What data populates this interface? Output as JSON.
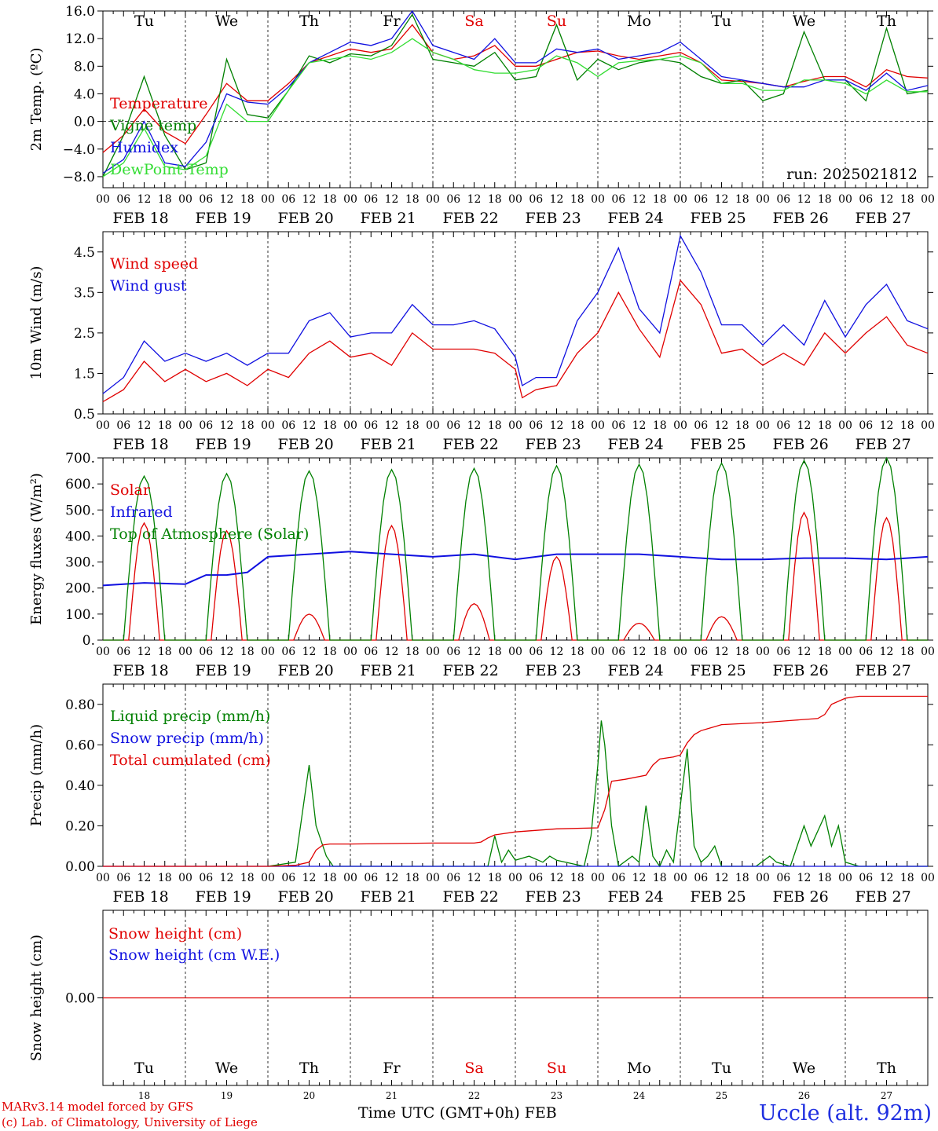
{
  "chart_data": [
    {
      "type": "line",
      "ylabel": "2m Temp. (ºC)",
      "ylim": [
        -9.6,
        16.0
      ],
      "yticks": [
        -8.0,
        -4.0,
        0.0,
        4.0,
        8.0,
        12.0,
        16.0
      ],
      "ytick_labels": [
        "−8.0",
        "−4.0",
        "0.0",
        "4.0",
        "8.0",
        "12.0",
        "16.0"
      ],
      "xlim": [
        0,
        240
      ],
      "annotation": "run: 2025021812",
      "series": [
        {
          "name": "Temperature",
          "color": "#e00000",
          "x": [
            0,
            6,
            12,
            18,
            24,
            30,
            36,
            42,
            48,
            54,
            60,
            66,
            72,
            78,
            84,
            90,
            96,
            102,
            108,
            114,
            120,
            126,
            132,
            138,
            144,
            150,
            156,
            162,
            168,
            174,
            180,
            186,
            192,
            198,
            204,
            210,
            216,
            222,
            228,
            234,
            240
          ],
          "values": [
            -4.5,
            -2,
            1.8,
            -1.5,
            -3.2,
            1,
            5.5,
            3,
            3,
            5.5,
            8.5,
            9.5,
            10.5,
            10,
            10.5,
            14,
            10,
            9,
            9.5,
            11,
            8,
            8,
            9,
            10,
            10.2,
            9.5,
            9,
            9.5,
            10,
            8.5,
            6,
            5.8,
            5.5,
            5,
            5.8,
            6.5,
            6.5,
            5,
            7.5,
            6.5,
            6.3
          ]
        },
        {
          "name": "Vigne temp",
          "color": "#008000",
          "x": [
            0,
            6,
            12,
            18,
            24,
            30,
            36,
            42,
            48,
            54,
            60,
            66,
            72,
            78,
            84,
            90,
            96,
            102,
            108,
            114,
            120,
            126,
            132,
            138,
            144,
            150,
            156,
            162,
            168,
            174,
            180,
            186,
            192,
            198,
            204,
            210,
            216,
            222,
            228,
            234,
            240
          ],
          "values": [
            -8,
            -2,
            6.5,
            -2,
            -7,
            -6,
            9,
            1,
            0.5,
            4.5,
            9.5,
            8.5,
            9.8,
            9.5,
            11,
            15.5,
            9,
            8.5,
            8,
            10,
            6,
            6.5,
            14,
            6,
            9,
            7.5,
            8.5,
            9,
            8.5,
            6.5,
            5.5,
            6,
            3,
            4,
            13,
            6,
            6,
            3,
            13.5,
            4,
            4.5
          ]
        },
        {
          "name": "Humidex",
          "color": "#1010e0",
          "x": [
            0,
            6,
            12,
            18,
            24,
            30,
            36,
            42,
            48,
            54,
            60,
            66,
            72,
            78,
            84,
            90,
            96,
            102,
            108,
            114,
            120,
            126,
            132,
            138,
            144,
            150,
            156,
            162,
            168,
            174,
            180,
            186,
            192,
            198,
            204,
            210,
            216,
            222,
            228,
            234,
            240
          ],
          "values": [
            -7.5,
            -5.5,
            0,
            -6,
            -6.5,
            -3,
            4,
            2.8,
            2.5,
            5,
            8.5,
            10,
            11.5,
            11,
            12,
            16,
            11,
            10,
            9,
            12,
            8.5,
            8.5,
            10.5,
            10,
            10.5,
            9,
            9.5,
            10,
            11.5,
            9,
            6.5,
            6,
            5.5,
            5,
            5,
            6,
            6,
            4.5,
            7,
            4.5,
            5.2
          ]
        },
        {
          "name": "DewPoint Temp",
          "color": "#33dd33",
          "x": [
            0,
            6,
            12,
            18,
            24,
            30,
            36,
            42,
            48,
            54,
            60,
            66,
            72,
            78,
            84,
            90,
            96,
            102,
            108,
            114,
            120,
            126,
            132,
            138,
            144,
            150,
            156,
            162,
            168,
            174,
            180,
            186,
            192,
            198,
            204,
            210,
            216,
            222,
            228,
            234,
            240
          ],
          "values": [
            -8,
            -6,
            -1,
            -6.5,
            -7,
            -5,
            2.5,
            0,
            0,
            4.5,
            8.5,
            9,
            9.5,
            9,
            10,
            12,
            10,
            9,
            7.5,
            7,
            7,
            7.5,
            9.5,
            8.5,
            6.5,
            8.5,
            8.8,
            9,
            9.5,
            8.5,
            5.5,
            5.5,
            4.5,
            4.5,
            6,
            6,
            5.5,
            4,
            6,
            4.3,
            4.3
          ]
        }
      ]
    },
    {
      "type": "line",
      "ylabel": "10m Wind (m/s)",
      "ylim": [
        0.5,
        5.0
      ],
      "yticks": [
        0.5,
        1.5,
        2.5,
        3.5,
        4.5
      ],
      "ytick_labels": [
        "0.5",
        "1.5",
        "2.5",
        "3.5",
        "4.5"
      ],
      "xlim": [
        0,
        240
      ],
      "series": [
        {
          "name": "Wind speed",
          "color": "#e00000",
          "x": [
            0,
            6,
            12,
            18,
            24,
            30,
            36,
            42,
            48,
            54,
            60,
            66,
            72,
            78,
            84,
            90,
            96,
            102,
            108,
            114,
            120,
            122,
            126,
            132,
            138,
            144,
            150,
            156,
            162,
            168,
            174,
            180,
            186,
            192,
            198,
            204,
            210,
            216,
            222,
            228,
            234,
            240
          ],
          "values": [
            0.8,
            1.1,
            1.8,
            1.3,
            1.6,
            1.3,
            1.5,
            1.2,
            1.6,
            1.4,
            2.0,
            2.3,
            1.9,
            2.0,
            1.7,
            2.5,
            2.1,
            2.1,
            2.1,
            2.0,
            1.6,
            0.9,
            1.1,
            1.2,
            2.0,
            2.5,
            3.5,
            2.6,
            1.9,
            3.8,
            3.2,
            2.0,
            2.1,
            1.7,
            2.0,
            1.7,
            2.5,
            2.0,
            2.5,
            2.9,
            2.2,
            2.0
          ]
        },
        {
          "name": "Wind gust",
          "color": "#1010e0",
          "x": [
            0,
            6,
            12,
            18,
            24,
            30,
            36,
            42,
            48,
            54,
            60,
            66,
            72,
            78,
            84,
            90,
            96,
            102,
            108,
            114,
            120,
            122,
            126,
            132,
            138,
            144,
            150,
            156,
            162,
            168,
            174,
            180,
            186,
            192,
            198,
            204,
            210,
            216,
            222,
            228,
            234,
            240
          ],
          "values": [
            1.0,
            1.4,
            2.3,
            1.8,
            2.0,
            1.8,
            2.0,
            1.7,
            2.0,
            2.0,
            2.8,
            3.0,
            2.4,
            2.5,
            2.5,
            3.2,
            2.7,
            2.7,
            2.8,
            2.6,
            1.9,
            1.2,
            1.4,
            1.4,
            2.8,
            3.5,
            4.6,
            3.1,
            2.5,
            4.9,
            4.0,
            2.7,
            2.7,
            2.2,
            2.7,
            2.2,
            3.3,
            2.4,
            3.2,
            3.7,
            2.8,
            2.6
          ]
        }
      ]
    },
    {
      "type": "line",
      "ylabel": "Energy fluxes (W/m²)",
      "ylim": [
        0,
        700
      ],
      "yticks": [
        0,
        100,
        200,
        300,
        400,
        500,
        600,
        700
      ],
      "ytick_labels": [
        "0.",
        "100.",
        "200.",
        "300.",
        "400.",
        "500.",
        "600.",
        "700."
      ],
      "xlim": [
        0,
        240
      ],
      "series": [
        {
          "name": "Solar",
          "color": "#e00000",
          "peaks": [
            450,
            420,
            100,
            440,
            140,
            320,
            65,
            90,
            490,
            470
          ]
        },
        {
          "name": "Infrared",
          "color": "#1010e0",
          "x": [
            0,
            12,
            24,
            30,
            36,
            42,
            48,
            60,
            72,
            84,
            96,
            108,
            120,
            132,
            144,
            156,
            168,
            180,
            192,
            204,
            216,
            228,
            240
          ],
          "values": [
            210,
            220,
            215,
            250,
            250,
            260,
            320,
            330,
            340,
            330,
            320,
            330,
            310,
            330,
            330,
            330,
            320,
            310,
            310,
            315,
            315,
            310,
            320
          ]
        },
        {
          "name": "Top of Atmosphere (Solar)",
          "color": "#008000",
          "peaks": [
            630,
            640,
            650,
            655,
            660,
            670,
            675,
            680,
            690,
            700
          ]
        }
      ]
    },
    {
      "type": "line",
      "ylabel": "Precip (mm/h)",
      "ylim": [
        0,
        0.9
      ],
      "yticks": [
        0,
        0.2,
        0.4,
        0.6,
        0.8
      ],
      "ytick_labels": [
        "0.00",
        "0.20",
        "0.40",
        "0.60",
        "0.80"
      ],
      "xlim": [
        0,
        240
      ],
      "series": [
        {
          "name": "Liquid precip (mm/h)",
          "color": "#008000",
          "x": [
            48,
            56,
            60,
            62,
            65,
            67,
            72,
            112,
            114,
            116,
            118,
            120,
            124,
            128,
            130,
            132,
            140,
            142,
            144,
            145,
            146,
            148,
            150,
            154,
            156,
            158,
            160,
            162,
            164,
            166,
            168,
            170,
            172,
            174,
            176,
            178,
            180,
            190,
            194,
            196,
            200,
            204,
            206,
            210,
            212,
            214,
            216,
            220,
            230,
            240
          ],
          "values": [
            0,
            0.02,
            0.5,
            0.2,
            0.05,
            0,
            0,
            0,
            0.15,
            0.02,
            0.08,
            0.03,
            0.05,
            0.02,
            0.05,
            0.03,
            0,
            0.15,
            0.5,
            0.72,
            0.6,
            0.2,
            0,
            0.05,
            0.02,
            0.3,
            0.05,
            0,
            0.08,
            0.02,
            0.3,
            0.58,
            0.1,
            0.02,
            0.05,
            0.1,
            0,
            0,
            0.05,
            0.02,
            0,
            0.2,
            0.1,
            0.25,
            0.1,
            0.2,
            0.02,
            0,
            0,
            0
          ]
        },
        {
          "name": "Snow precip (mm/h)",
          "color": "#1010e0",
          "x": [
            0,
            240
          ],
          "values": [
            0,
            0
          ]
        },
        {
          "name": "Total cumulated (cm)",
          "color": "#e00000",
          "x": [
            0,
            48,
            56,
            60,
            62,
            64,
            66,
            72,
            96,
            108,
            110,
            112,
            114,
            120,
            132,
            144,
            146,
            148,
            152,
            158,
            160,
            162,
            166,
            168,
            170,
            172,
            174,
            176,
            180,
            192,
            200,
            208,
            210,
            212,
            216,
            220,
            240
          ],
          "values": [
            0,
            0,
            0.005,
            0.02,
            0.08,
            0.105,
            0.11,
            0.11,
            0.115,
            0.115,
            0.12,
            0.14,
            0.155,
            0.17,
            0.185,
            0.19,
            0.28,
            0.42,
            0.43,
            0.45,
            0.5,
            0.53,
            0.54,
            0.55,
            0.61,
            0.65,
            0.67,
            0.68,
            0.7,
            0.71,
            0.72,
            0.73,
            0.75,
            0.8,
            0.83,
            0.84,
            0.84
          ]
        }
      ]
    },
    {
      "type": "line",
      "ylabel": "Snow height (cm)",
      "ylim": [
        -1,
        1
      ],
      "yticks": [
        0
      ],
      "ytick_labels": [
        "0.00"
      ],
      "xlim": [
        0,
        240
      ],
      "series": [
        {
          "name": "Snow height (cm)",
          "color": "#e00000",
          "x": [
            0,
            240
          ],
          "values": [
            0,
            0
          ]
        },
        {
          "name": "Snow height (cm W.E.)",
          "color": "#1010e0",
          "x": [],
          "values": []
        }
      ]
    }
  ],
  "axis": {
    "hour_labels": [
      "00",
      "06",
      "12",
      "18"
    ],
    "end_hour_label": "00",
    "date_labels": [
      "FEB 18",
      "FEB 19",
      "FEB 20",
      "FEB 21",
      "FEB 22",
      "FEB 23",
      "FEB 24",
      "FEB 25",
      "FEB 26",
      "FEB 27"
    ],
    "day_names": [
      "Tu",
      "We",
      "Th",
      "Fr",
      "Sa",
      "Su",
      "Mo",
      "Tu",
      "We",
      "Th"
    ],
    "weekend_days": [
      4,
      5
    ],
    "day_numbers": [
      "18",
      "19",
      "20",
      "21",
      "22",
      "23",
      "24",
      "25",
      "26",
      "27"
    ]
  },
  "colors": {
    "weekend": "#e00000",
    "weekday": "#000000"
  },
  "footer": {
    "model_line": "MARv3.14 model forced by GFS",
    "lab_line": "(c) Lab. of Climatology, University of Liege",
    "time_label": "Time UTC (GMT+0h) FEB",
    "station": "Uccle (alt. 92m)"
  }
}
